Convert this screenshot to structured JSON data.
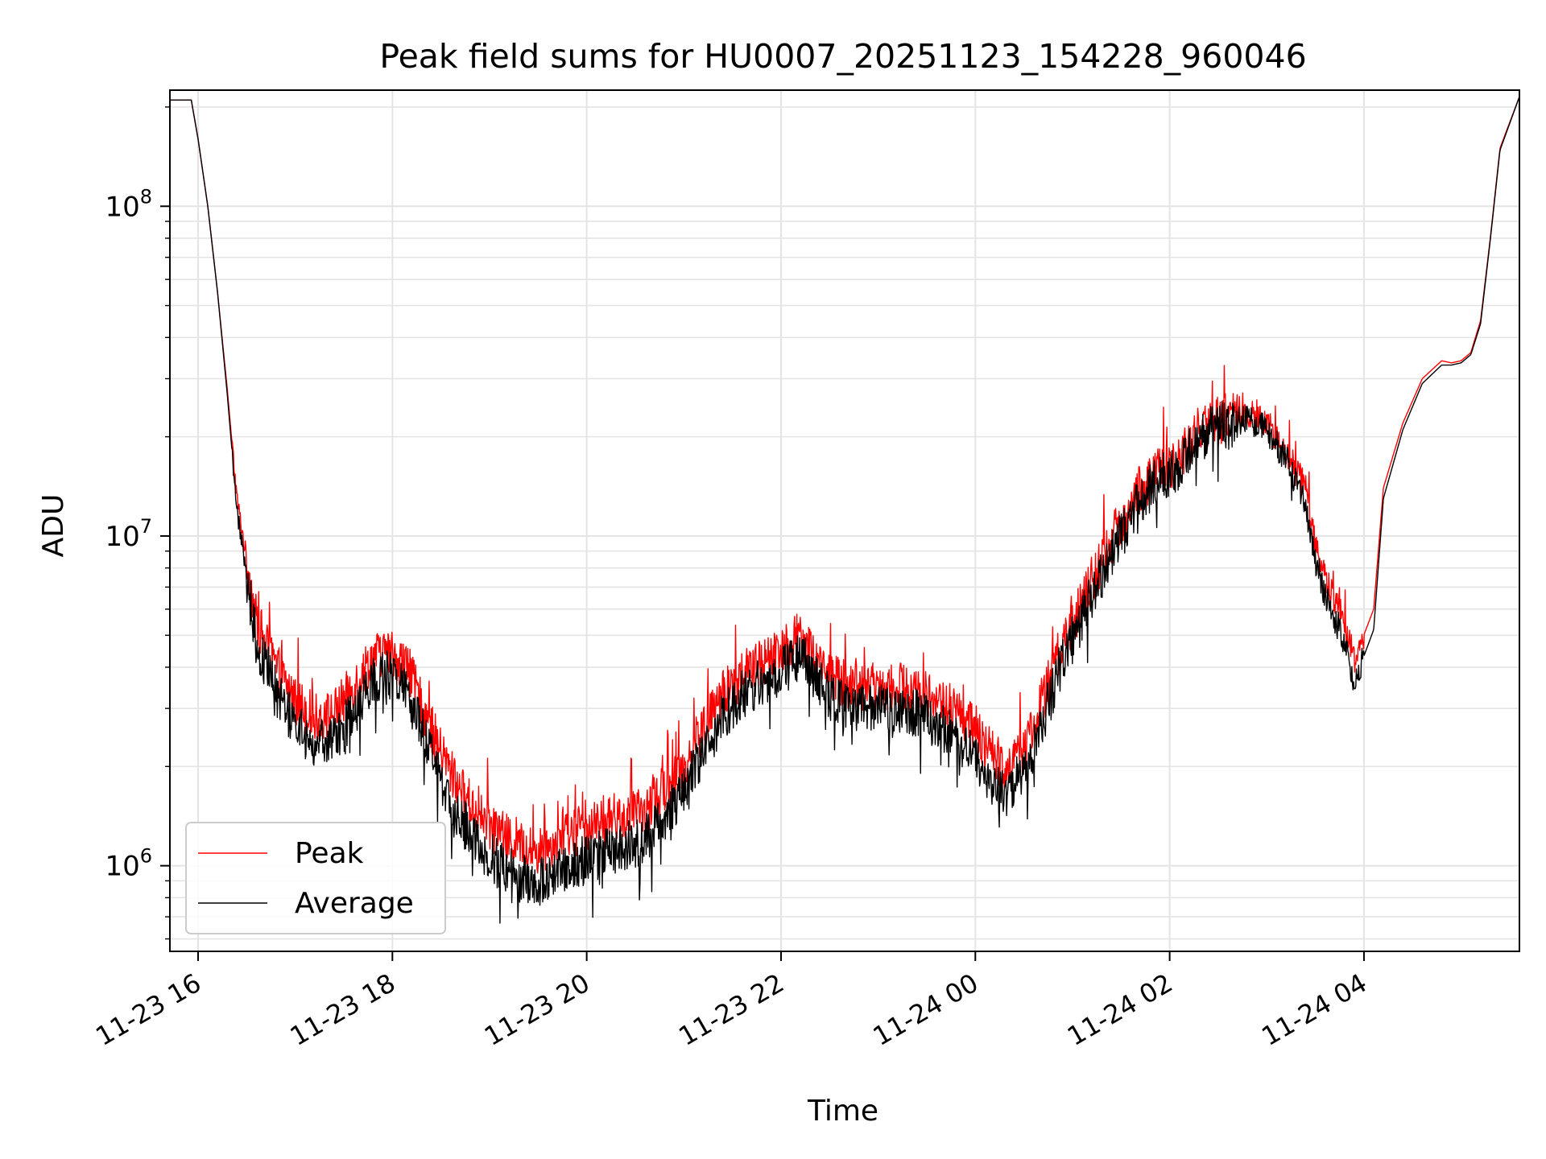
{
  "chart_data": {
    "type": "line",
    "title": "Peak field sums for HU0007_20251123_154228_960046",
    "xlabel": "Time",
    "ylabel": "ADU",
    "yscale": "log",
    "xlim_hours": [
      15.71,
      29.6
    ],
    "ylim": [
      550000,
      225000000
    ],
    "grid": true,
    "legend_position": "lower-left",
    "x_ticks": [
      {
        "label": "11-23 16",
        "hours": 16
      },
      {
        "label": "11-23 18",
        "hours": 18
      },
      {
        "label": "11-23 20",
        "hours": 20
      },
      {
        "label": "11-23 22",
        "hours": 22
      },
      {
        "label": "11-24 00",
        "hours": 24
      },
      {
        "label": "11-24 02",
        "hours": 26
      },
      {
        "label": "11-24 04",
        "hours": 28
      }
    ],
    "y_ticks": [
      {
        "base": "10",
        "exp": "6",
        "value": 1000000
      },
      {
        "base": "10",
        "exp": "7",
        "value": 10000000
      },
      {
        "base": "10",
        "exp": "8",
        "value": 100000000
      }
    ],
    "x_unit": "hours since 2025-11-23 00:00",
    "series": [
      {
        "name": "Peak",
        "color": "#ff0000",
        "x": [
          15.71,
          15.93,
          16.0,
          16.1,
          16.2,
          16.3,
          16.4,
          16.5,
          16.6,
          16.8,
          17.0,
          17.2,
          17.4,
          17.6,
          17.8,
          17.9,
          18.0,
          18.15,
          18.3,
          18.5,
          18.7,
          18.9,
          19.1,
          19.3,
          19.5,
          19.6,
          19.8,
          20.0,
          20.2,
          20.4,
          20.6,
          20.8,
          21.0,
          21.2,
          21.4,
          21.6,
          21.8,
          22.0,
          22.2,
          22.4,
          22.6,
          22.8,
          23.0,
          23.2,
          23.4,
          23.6,
          23.8,
          24.0,
          24.1,
          24.3,
          24.5,
          24.7,
          24.9,
          25.1,
          25.3,
          25.5,
          25.7,
          25.9,
          26.1,
          26.3,
          26.6,
          26.8,
          27.0,
          27.2,
          27.4,
          27.5,
          27.6,
          27.8,
          27.9,
          28.1,
          28.2,
          28.4,
          28.6,
          28.8,
          28.9,
          29.0,
          29.1,
          29.2,
          29.3,
          29.4,
          29.6
        ],
        "values": [
          210000000,
          210000000,
          160000000,
          100000000,
          55000000,
          28000000,
          13000000,
          8500000,
          5500000,
          4000000,
          3200000,
          2800000,
          2900000,
          3500000,
          4300000,
          4400000,
          4400000,
          4000000,
          3100000,
          2200000,
          1700000,
          1400000,
          1250000,
          1150000,
          1100000,
          1150000,
          1250000,
          1300000,
          1350000,
          1400000,
          1450000,
          1700000,
          2000000,
          2600000,
          3300000,
          3800000,
          4100000,
          4600000,
          5000000,
          4100000,
          3600000,
          3500000,
          3500000,
          3500000,
          3400000,
          3200000,
          2900000,
          2600000,
          2300000,
          2000000,
          2200000,
          3200000,
          4700000,
          6300000,
          8500000,
          11000000,
          14000000,
          16000000,
          17000000,
          21000000,
          23000000,
          23500000,
          22000000,
          18000000,
          14000000,
          9500000,
          7500000,
          5500000,
          4200000,
          6000000,
          14000000,
          22000000,
          30000000,
          34000000,
          33500000,
          34000000,
          36000000,
          45000000,
          80000000,
          150000000,
          215000000
        ]
      },
      {
        "name": "Average",
        "color": "#000000",
        "x": [
          15.71,
          15.93,
          16.0,
          16.1,
          16.2,
          16.3,
          16.4,
          16.5,
          16.6,
          16.8,
          17.0,
          17.2,
          17.4,
          17.6,
          17.8,
          17.9,
          18.0,
          18.15,
          18.3,
          18.5,
          18.7,
          18.9,
          19.1,
          19.3,
          19.5,
          19.6,
          19.8,
          20.0,
          20.2,
          20.4,
          20.6,
          20.8,
          21.0,
          21.2,
          21.4,
          21.6,
          21.8,
          22.0,
          22.2,
          22.4,
          22.6,
          22.8,
          23.0,
          23.2,
          23.4,
          23.6,
          23.8,
          24.0,
          24.1,
          24.3,
          24.5,
          24.7,
          24.9,
          25.1,
          25.3,
          25.5,
          25.7,
          25.9,
          26.1,
          26.3,
          26.6,
          26.8,
          27.0,
          27.2,
          27.4,
          27.5,
          27.6,
          27.8,
          27.9,
          28.1,
          28.2,
          28.4,
          28.6,
          28.8,
          28.9,
          29.0,
          29.1,
          29.2,
          29.3,
          29.4,
          29.6
        ],
        "values": [
          210000000,
          210000000,
          160000000,
          100000000,
          55000000,
          27000000,
          12000000,
          7500000,
          4800000,
          3400000,
          2700000,
          2300000,
          2400000,
          2900000,
          3600000,
          3800000,
          3800000,
          3400000,
          2600000,
          1800000,
          1400000,
          1150000,
          1000000,
          920000,
          880000,
          920000,
          1000000,
          1050000,
          1100000,
          1150000,
          1200000,
          1400000,
          1700000,
          2200000,
          2800000,
          3300000,
          3600000,
          4000000,
          4400000,
          3500000,
          3100000,
          3000000,
          3000000,
          3000000,
          2900000,
          2700000,
          2450000,
          2200000,
          1900000,
          1650000,
          1900000,
          2800000,
          4200000,
          5600000,
          7600000,
          10000000,
          13000000,
          15000000,
          16000000,
          20000000,
          22000000,
          22500000,
          21000000,
          17000000,
          12500000,
          8500000,
          6600000,
          4800000,
          3600000,
          5200000,
          13000000,
          21000000,
          29000000,
          33000000,
          33000000,
          33500000,
          35500000,
          44000000,
          79000000,
          148000000,
          215000000
        ]
      }
    ]
  }
}
